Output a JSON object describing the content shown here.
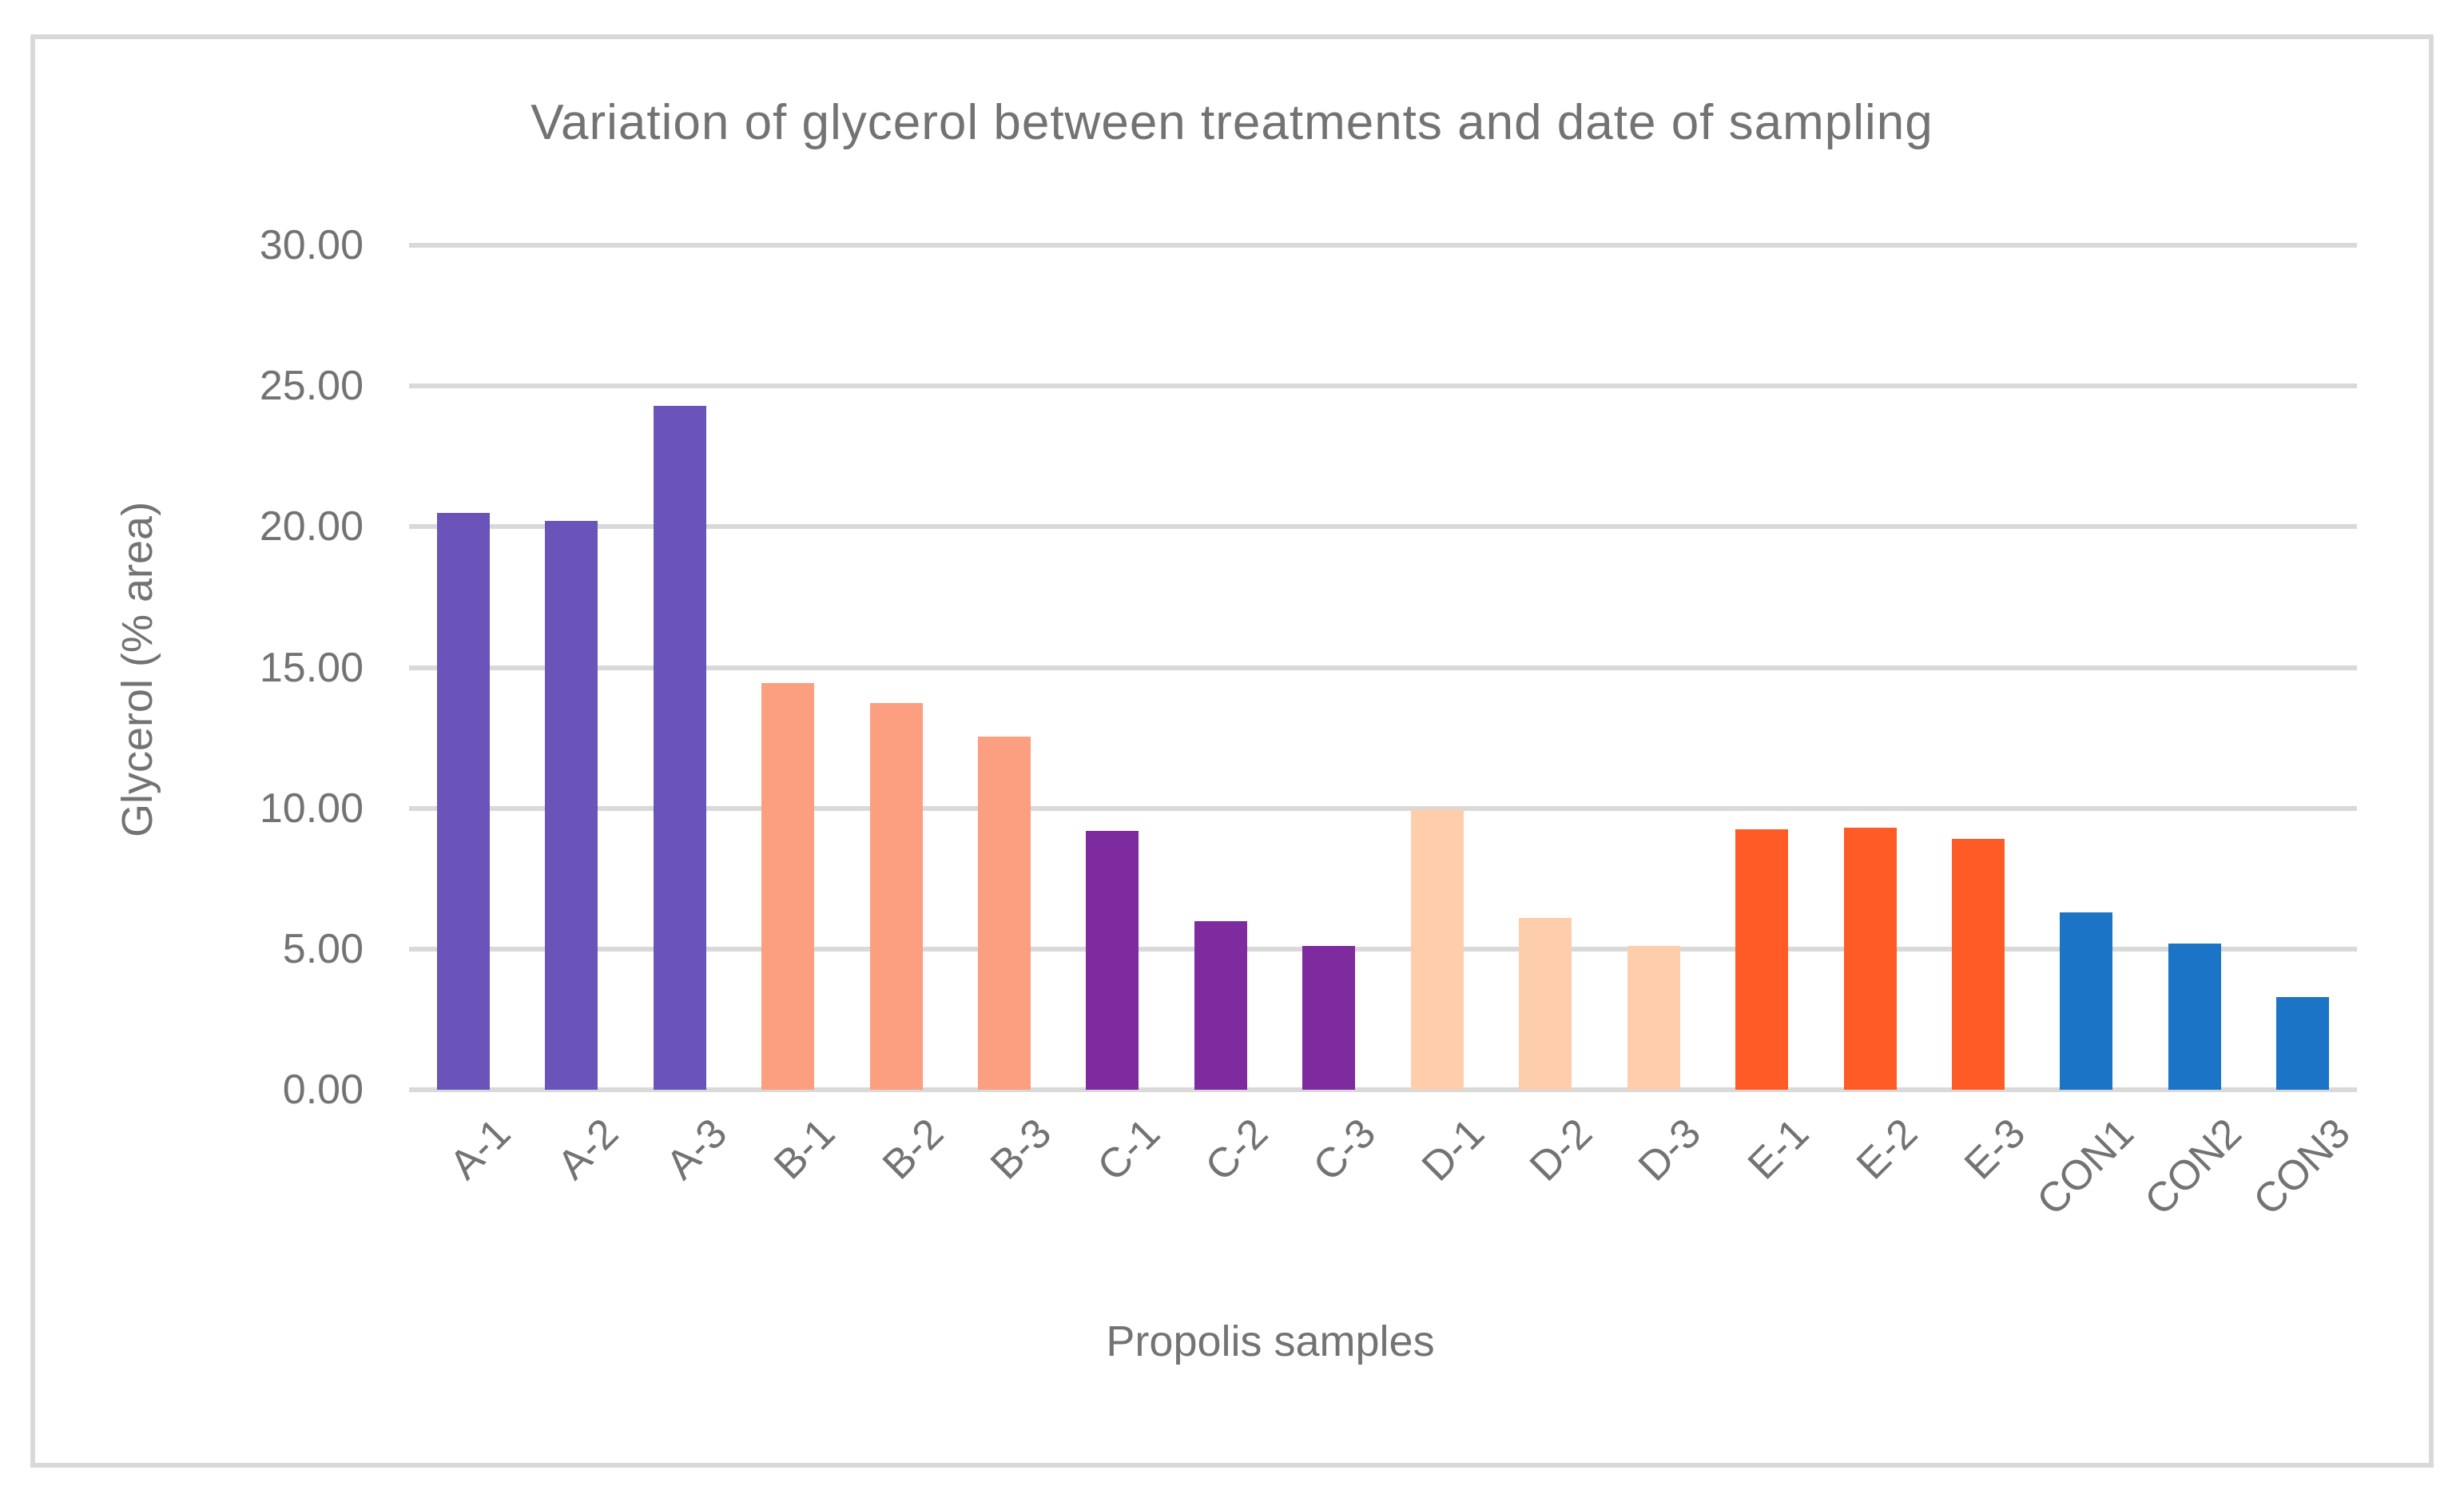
{
  "chart_data": {
    "type": "bar",
    "title": "Variation of glycerol between treatments and date of sampling",
    "xlabel": "Propolis samples",
    "ylabel": "Glycerol (% area)",
    "categories": [
      "A-1",
      "A-2",
      "A-3",
      "B-1",
      "B-2",
      "B-3",
      "C-1",
      "C-2",
      "C-3",
      "D-1",
      "D-2",
      "D-3",
      "E-1",
      "E-2",
      "E-3",
      "CON1",
      "CON2",
      "CON3"
    ],
    "values": [
      20.5,
      20.2,
      24.3,
      14.45,
      13.75,
      12.55,
      9.2,
      6.0,
      5.1,
      9.95,
      6.1,
      5.1,
      9.25,
      9.3,
      8.9,
      6.3,
      5.2,
      3.3
    ],
    "bar_colors": [
      "#6A54B9",
      "#6A54B9",
      "#6A54B9",
      "#FC9E80",
      "#FC9E80",
      "#FC9E80",
      "#7D2B9E",
      "#7D2B9E",
      "#7D2B9E",
      "#FECDAC",
      "#FECDAC",
      "#FECDAC",
      "#FF5B26",
      "#FF5B26",
      "#FF5B26",
      "#1B74C5",
      "#1B74C5",
      "#1B74C5"
    ],
    "group_colors": {
      "A": "#6A54B9",
      "B": "#FC9E80",
      "C": "#7D2B9E",
      "D": "#FECDAC",
      "E": "#FF5B26",
      "CON": "#1B74C5"
    },
    "yticks": [
      "0.00",
      "5.00",
      "10.00",
      "15.00",
      "20.00",
      "25.00",
      "30.00"
    ],
    "ytick_values": [
      0,
      5,
      10,
      15,
      20,
      25,
      30
    ],
    "ylim": [
      0,
      30
    ],
    "grid": true,
    "legend_position": "none",
    "colors": {
      "gridline": "#D9D9D9",
      "frame_border": "#D9D9D9",
      "text": "#737373",
      "background": "#ffffff"
    }
  }
}
